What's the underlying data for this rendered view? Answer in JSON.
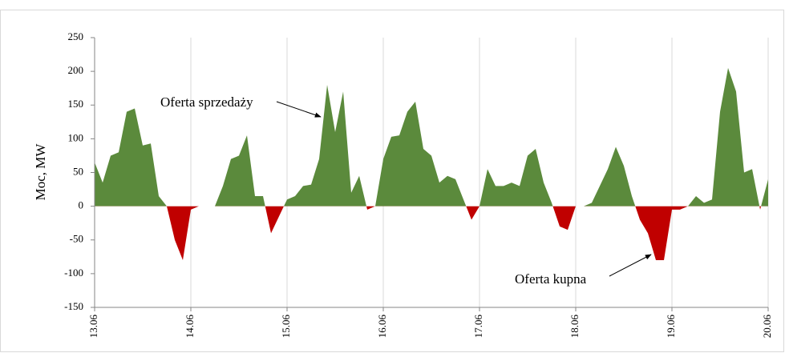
{
  "chart_data": {
    "type": "area",
    "y_axis_label": "Moc, MW",
    "annotations": [
      "Oferta sprzedaży",
      "Oferta kupna"
    ],
    "values": [
      65,
      35,
      75,
      80,
      140,
      145,
      90,
      93,
      15,
      0,
      -50,
      -80,
      -5,
      0,
      0,
      0,
      30,
      70,
      75,
      105,
      15,
      15,
      -40,
      -15,
      10,
      15,
      30,
      32,
      70,
      180,
      110,
      170,
      20,
      45,
      -5,
      0,
      70,
      103,
      105,
      140,
      155,
      85,
      75,
      35,
      45,
      40,
      10,
      -20,
      0,
      55,
      30,
      30,
      35,
      30,
      75,
      85,
      35,
      5,
      -30,
      -35,
      0,
      0,
      5,
      30,
      55,
      88,
      60,
      15,
      -20,
      -40,
      -80,
      -80,
      -5,
      -5,
      0,
      15,
      5,
      10,
      140,
      205,
      170,
      50,
      55,
      -5,
      40
    ],
    "positive_color": "#5b8a3c",
    "negative_color": "#c00000",
    "xlim": [
      0,
      84
    ],
    "xticks": [
      {
        "value": 0,
        "label": "13.06"
      },
      {
        "value": 12,
        "label": "14.06"
      },
      {
        "value": 24,
        "label": "15.06"
      },
      {
        "value": 36,
        "label": "16.06"
      },
      {
        "value": 48,
        "label": "17.06"
      },
      {
        "value": 60,
        "label": "18.06"
      },
      {
        "value": 72,
        "label": "19.06"
      },
      {
        "value": 84,
        "label": "20.06"
      }
    ],
    "ylim": [
      -150,
      250
    ],
    "yticks": [
      -150,
      -100,
      -50,
      0,
      50,
      100,
      150,
      200,
      250
    ],
    "grid": true
  }
}
